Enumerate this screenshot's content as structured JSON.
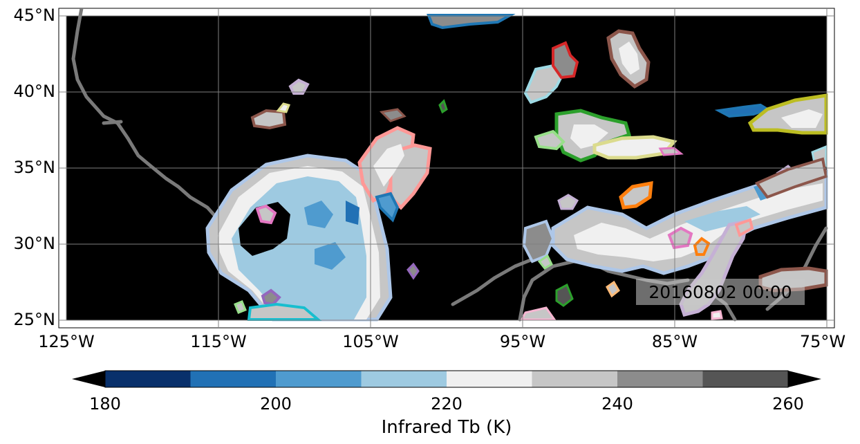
{
  "map": {
    "lon_range": [
      -125,
      -75
    ],
    "lat_range": [
      25,
      45
    ],
    "gridlines": true,
    "timestamp": "20160802 00:00",
    "lon_ticks": [
      "125°W",
      "115°W",
      "105°W",
      "95°W",
      "85°W",
      "75°W"
    ],
    "lat_ticks": [
      "45°N",
      "40°N",
      "35°N",
      "30°N",
      "25°N"
    ]
  },
  "colorbar": {
    "label": "Infrared Tb (K)",
    "ticks": [
      "180",
      "200",
      "220",
      "240",
      "260"
    ],
    "extend": "both",
    "colors": [
      "#08306b",
      "#08306b",
      "#2171b5",
      "#4f9bcf",
      "#9ecae1",
      "#f0f0f0",
      "#c6c6c6",
      "#8c8c8c",
      "#555555",
      "#000000"
    ]
  }
}
